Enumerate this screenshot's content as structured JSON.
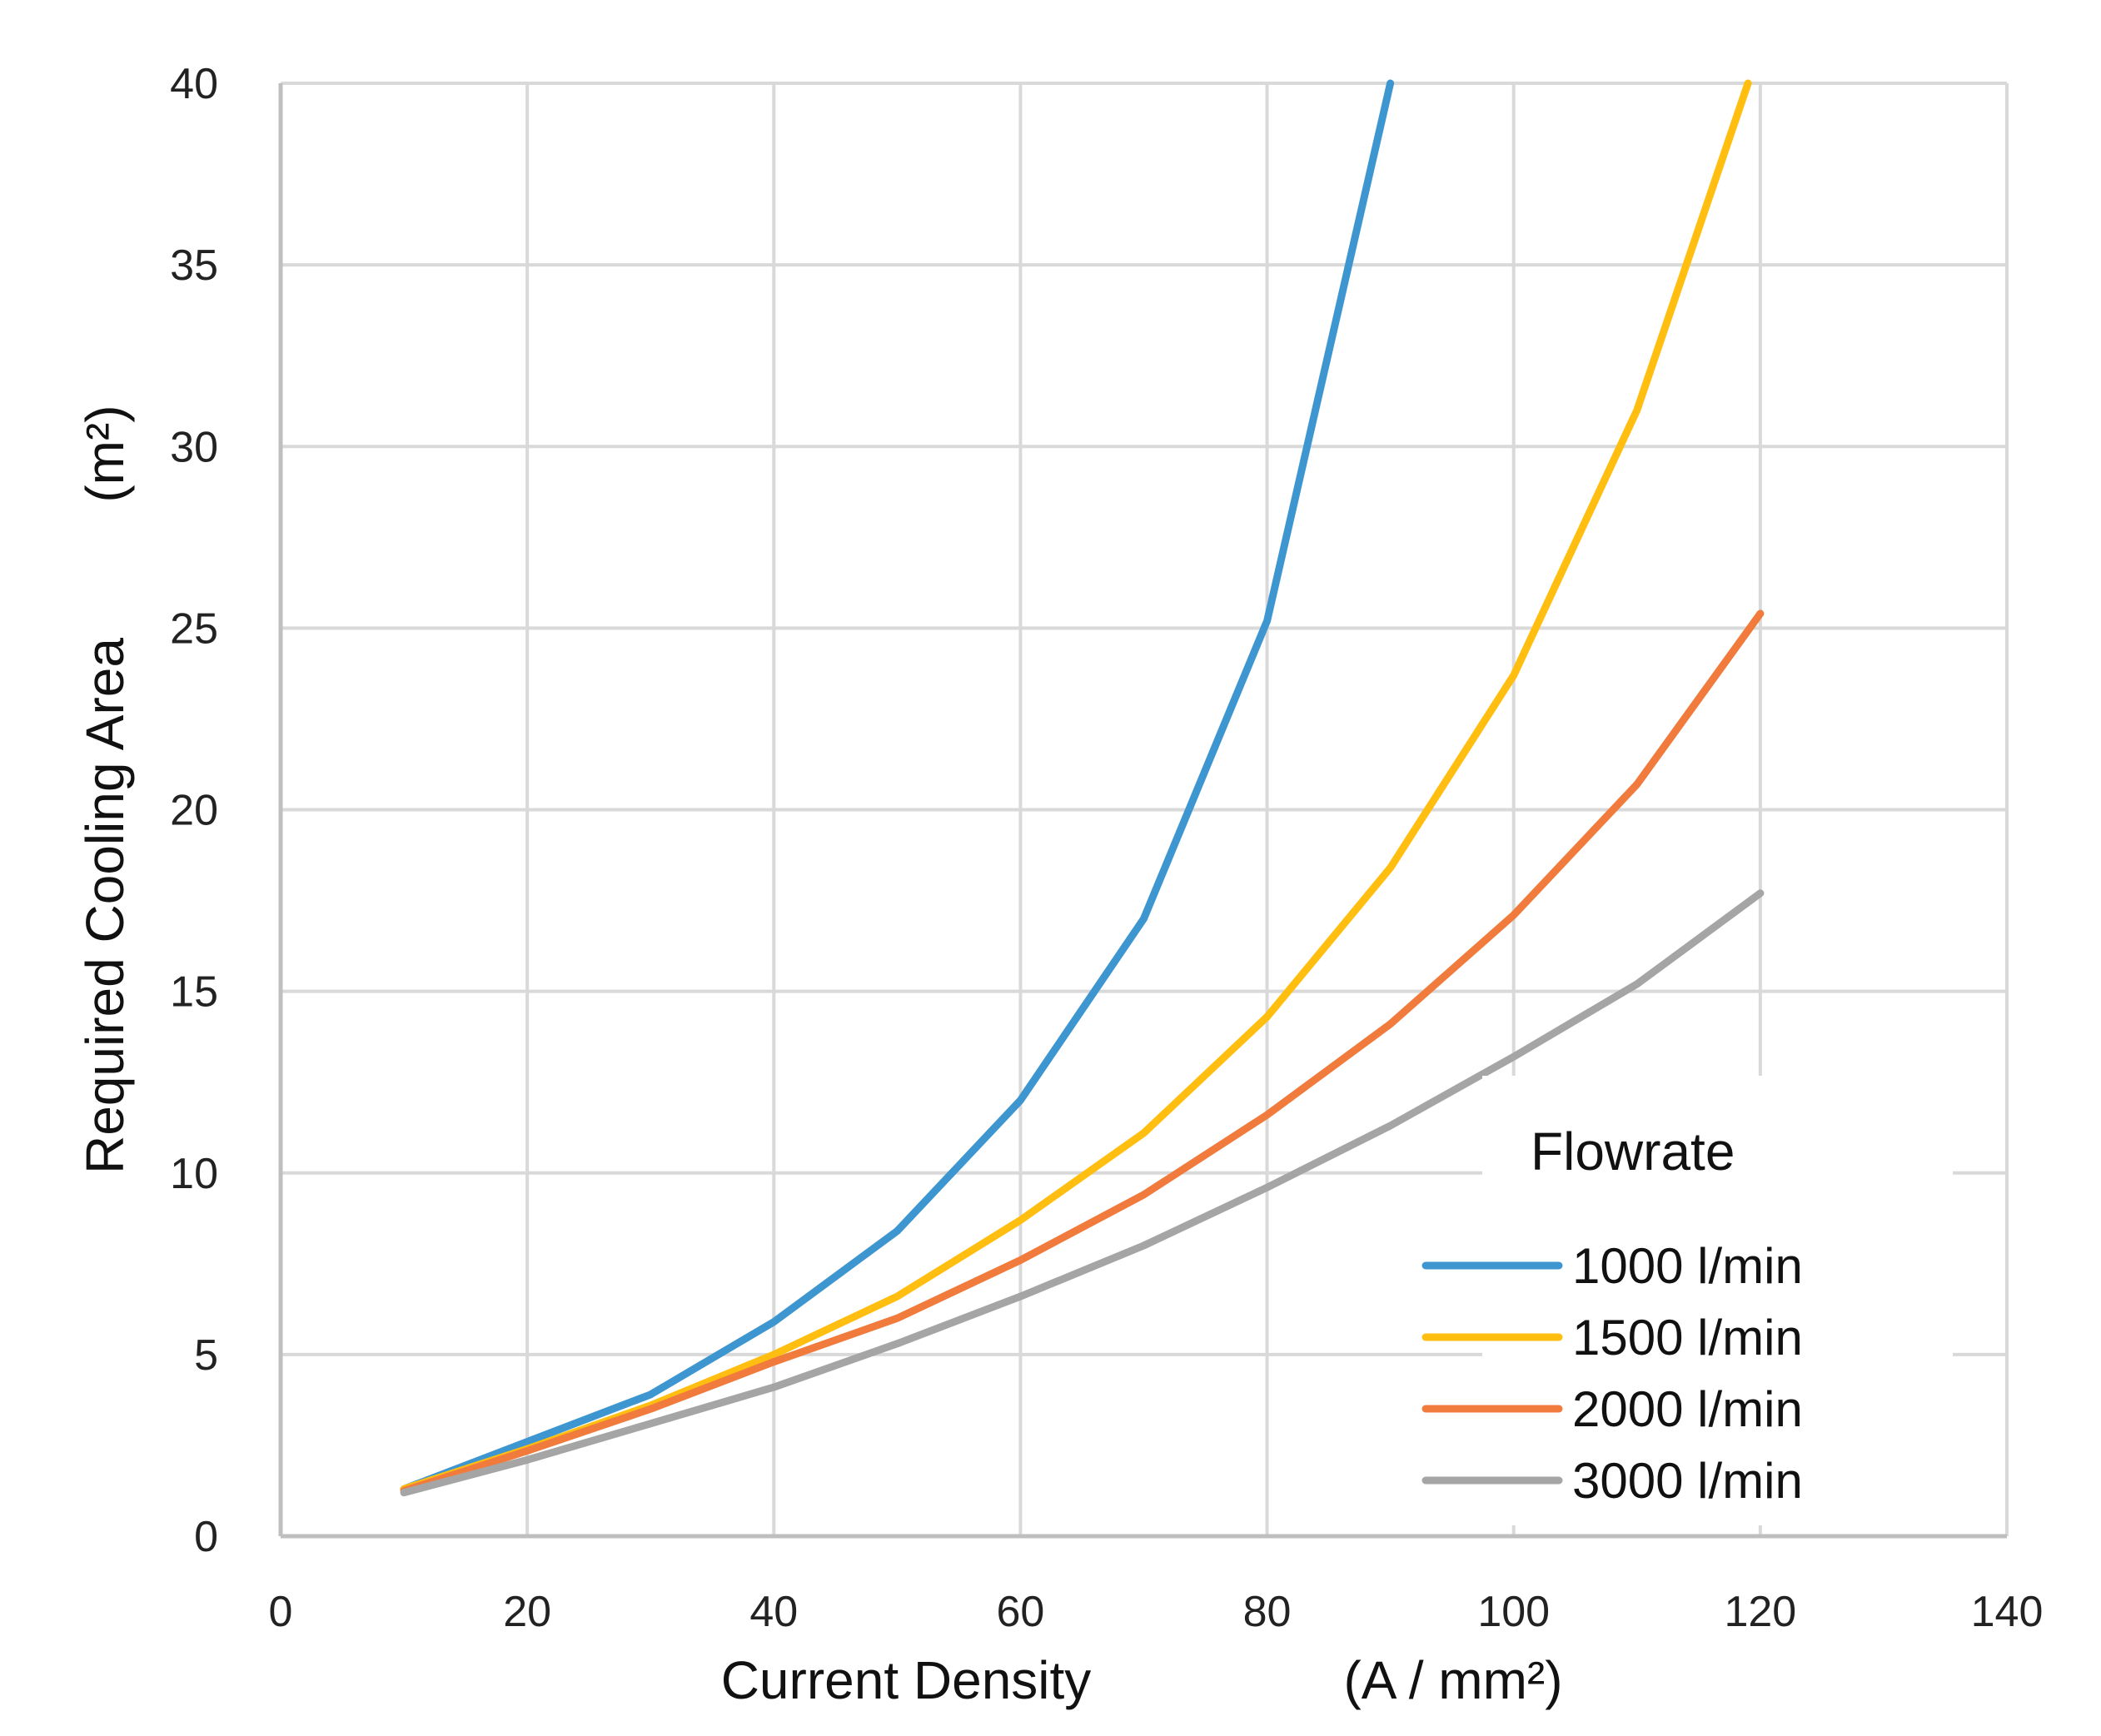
{
  "chart_data": {
    "type": "line",
    "title": "",
    "xlabel": "Current Density",
    "xunit": "(A / mm²)",
    "ylabel": "Required Cooling Area",
    "yunit": "(m²)",
    "xlim": [
      0,
      140
    ],
    "ylim": [
      0,
      40
    ],
    "xticks": [
      0,
      20,
      40,
      60,
      80,
      100,
      120,
      140
    ],
    "yticks": [
      0,
      5,
      10,
      15,
      20,
      25,
      30,
      35,
      40
    ],
    "grid": true,
    "legend": {
      "title": "Flowrate",
      "placement": "bottom-right"
    },
    "series": [
      {
        "name": "1000 l/min",
        "color": "#3E96D0",
        "x": [
          10,
          20,
          30,
          40,
          50,
          60,
          70,
          80,
          90
        ],
        "y": [
          1.3,
          2.6,
          3.9,
          5.9,
          8.4,
          12.0,
          17.0,
          25.2,
          40.0
        ]
      },
      {
        "name": "1500 l/min",
        "color": "#FFBE10",
        "x": [
          10,
          20,
          30,
          40,
          50,
          60,
          70,
          80,
          90,
          100,
          110,
          119
        ],
        "y": [
          1.3,
          2.4,
          3.6,
          5.0,
          6.6,
          8.7,
          11.1,
          14.3,
          18.4,
          23.7,
          31.0,
          40.0
        ]
      },
      {
        "name": "2000 l/min",
        "color": "#F07B3C",
        "x": [
          10,
          20,
          30,
          40,
          50,
          60,
          70,
          80,
          90,
          100,
          110,
          120
        ],
        "y": [
          1.25,
          2.35,
          3.5,
          4.8,
          6.0,
          7.6,
          9.4,
          11.6,
          14.1,
          17.1,
          20.7,
          25.4
        ]
      },
      {
        "name": "3000 l/min",
        "color": "#A5A5A5",
        "x": [
          10,
          20,
          30,
          40,
          50,
          60,
          70,
          80,
          90,
          100,
          110,
          120
        ],
        "y": [
          1.2,
          2.1,
          3.1,
          4.1,
          5.3,
          6.6,
          8.0,
          9.6,
          11.3,
          13.2,
          15.2,
          17.7
        ]
      }
    ]
  }
}
